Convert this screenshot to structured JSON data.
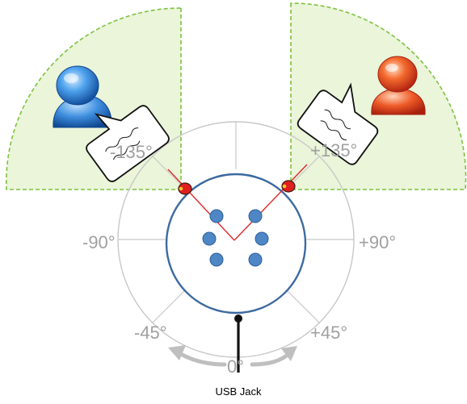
{
  "angle_labels": {
    "neg135": "-135°",
    "pos135": "+135°",
    "neg90": "-90°",
    "pos90": "+90°",
    "neg45": "-45°",
    "pos45": "+45°",
    "zero": "0°"
  },
  "usb_label": "USB Jack",
  "colors": {
    "sector_fill": "#eaf5d9",
    "sector_border": "#7ec241",
    "dial_ring": "#c8c8c8",
    "board_circle": "#3c6aa0",
    "mic_fill": "#4f86c6",
    "beam_line": "#e0282a",
    "left_person": "#2d7fd4",
    "right_person": "#e8502a",
    "angle_text": "#a0a0a0"
  },
  "icons": {
    "left_user": "user-person-icon",
    "right_user": "user-person-icon",
    "speech": "speech-bubble-icon",
    "mic": "microphone-dot-icon",
    "rotation": "rotate-arrow-icon"
  }
}
